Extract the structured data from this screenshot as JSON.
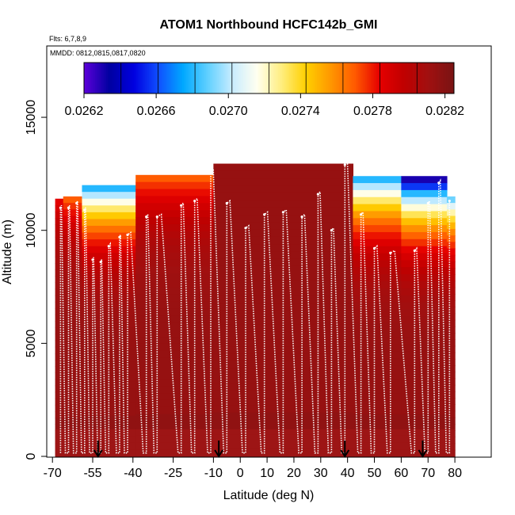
{
  "chart_data": {
    "type": "heatmap",
    "title": "ATOM1 Northbound HCFC142b_GMI",
    "subtitle_flights": "Flts: 6,7,8,9",
    "subtitle_dates": "MMDD: 0812,0815,0817,0820",
    "xlabel": "Latitude (deg N)",
    "ylabel": "Altitude (m)",
    "xlim": [
      -70,
      85
    ],
    "ylim": [
      0,
      17500
    ],
    "xticks": [
      -70,
      -55,
      -40,
      -25,
      -10,
      0,
      10,
      20,
      30,
      40,
      50,
      60,
      70,
      80
    ],
    "xtick_labels": [
      "-70",
      "-55",
      "-40",
      "-25",
      "-10",
      "0",
      "10",
      "20",
      "30",
      "40",
      "50",
      "60",
      "70",
      "80"
    ],
    "yticks": [
      0,
      5000,
      10000,
      15000
    ],
    "ytick_labels": [
      "0",
      "5000",
      "10000",
      "15000"
    ],
    "colorbar": {
      "min": 0.0262,
      "max": 0.02825,
      "ticks": [
        0.0262,
        0.0266,
        0.027,
        0.0274,
        0.0278,
        0.0282
      ],
      "tick_labels": [
        "0.0262",
        "0.0266",
        "0.0270",
        "0.0274",
        "0.0278",
        "0.0282"
      ],
      "palette": [
        "#5a00d8",
        "#0000a0",
        "#0000e0",
        "#1050ff",
        "#00a8ff",
        "#60d0ff",
        "#c8ecff",
        "#fffff0",
        "#ffee80",
        "#ffd000",
        "#ff9800",
        "#ff5a00",
        "#e60000",
        "#c00000",
        "#a01010",
        "#7a1414"
      ]
    },
    "model_curtain": [
      {
        "lat_range": [
          -69,
          -66
        ],
        "alt_top": 11400,
        "top_value": 0.02785,
        "bottom_value": 0.02815
      },
      {
        "lat_range": [
          -66,
          -59
        ],
        "alt_top": 11500,
        "top_value": 0.0277,
        "bottom_value": 0.02815
      },
      {
        "lat_range": [
          -59,
          -39
        ],
        "alt_top": 12000,
        "top_value": 0.0268,
        "bottom_value": 0.02815
      },
      {
        "lat_range": [
          -39,
          -10
        ],
        "alt_top": 12450,
        "top_value": 0.0277,
        "bottom_value": 0.02815
      },
      {
        "lat_range": [
          -10,
          42
        ],
        "alt_top": 12950,
        "top_value": 0.02815,
        "bottom_value": 0.02815
      },
      {
        "lat_range": [
          42,
          60
        ],
        "alt_top": 12400,
        "top_value": 0.0268,
        "bottom_value": 0.02815
      },
      {
        "lat_range": [
          60,
          77
        ],
        "alt_top": 12400,
        "top_value": 0.0263,
        "bottom_value": 0.02815
      },
      {
        "lat_range": [
          77,
          80
        ],
        "alt_top": 11500,
        "top_value": 0.0269,
        "bottom_value": 0.02815
      }
    ],
    "flight_profiles": [
      {
        "lat": -67,
        "alt_top": 11000
      },
      {
        "lat": -64,
        "alt_top": 11000
      },
      {
        "lat": -61,
        "alt_top": 11200
      },
      {
        "lat": -58,
        "alt_top": 10900
      },
      {
        "lat": -55,
        "alt_top": 8700
      },
      {
        "lat": -52,
        "alt_top": 8600
      },
      {
        "lat": -49,
        "alt_top": 9300
      },
      {
        "lat": -45,
        "alt_top": 9700
      },
      {
        "lat": -42,
        "alt_top": 9800
      },
      {
        "lat": -35,
        "alt_top": 10600
      },
      {
        "lat": -31,
        "alt_top": 10600
      },
      {
        "lat": -22,
        "alt_top": 11100
      },
      {
        "lat": -17,
        "alt_top": 11300
      },
      {
        "lat": -11,
        "alt_top": 12600
      },
      {
        "lat": -5,
        "alt_top": 11200
      },
      {
        "lat": 2,
        "alt_top": 10100
      },
      {
        "lat": 9,
        "alt_top": 10700
      },
      {
        "lat": 16,
        "alt_top": 10800
      },
      {
        "lat": 23,
        "alt_top": 10600
      },
      {
        "lat": 29,
        "alt_top": 11600
      },
      {
        "lat": 34,
        "alt_top": 10000
      },
      {
        "lat": 39,
        "alt_top": 12900
      },
      {
        "lat": 45,
        "alt_top": 10700
      },
      {
        "lat": 50,
        "alt_top": 9200
      },
      {
        "lat": 56,
        "alt_top": 9000
      },
      {
        "lat": 65,
        "alt_top": 9100
      },
      {
        "lat": 70,
        "alt_top": 11200
      },
      {
        "lat": 74,
        "alt_top": 12100
      },
      {
        "lat": 78,
        "alt_top": 11300
      }
    ],
    "arrows_lat": [
      -53,
      -8,
      39,
      68
    ],
    "grid": false,
    "legend": "colorbar top"
  }
}
